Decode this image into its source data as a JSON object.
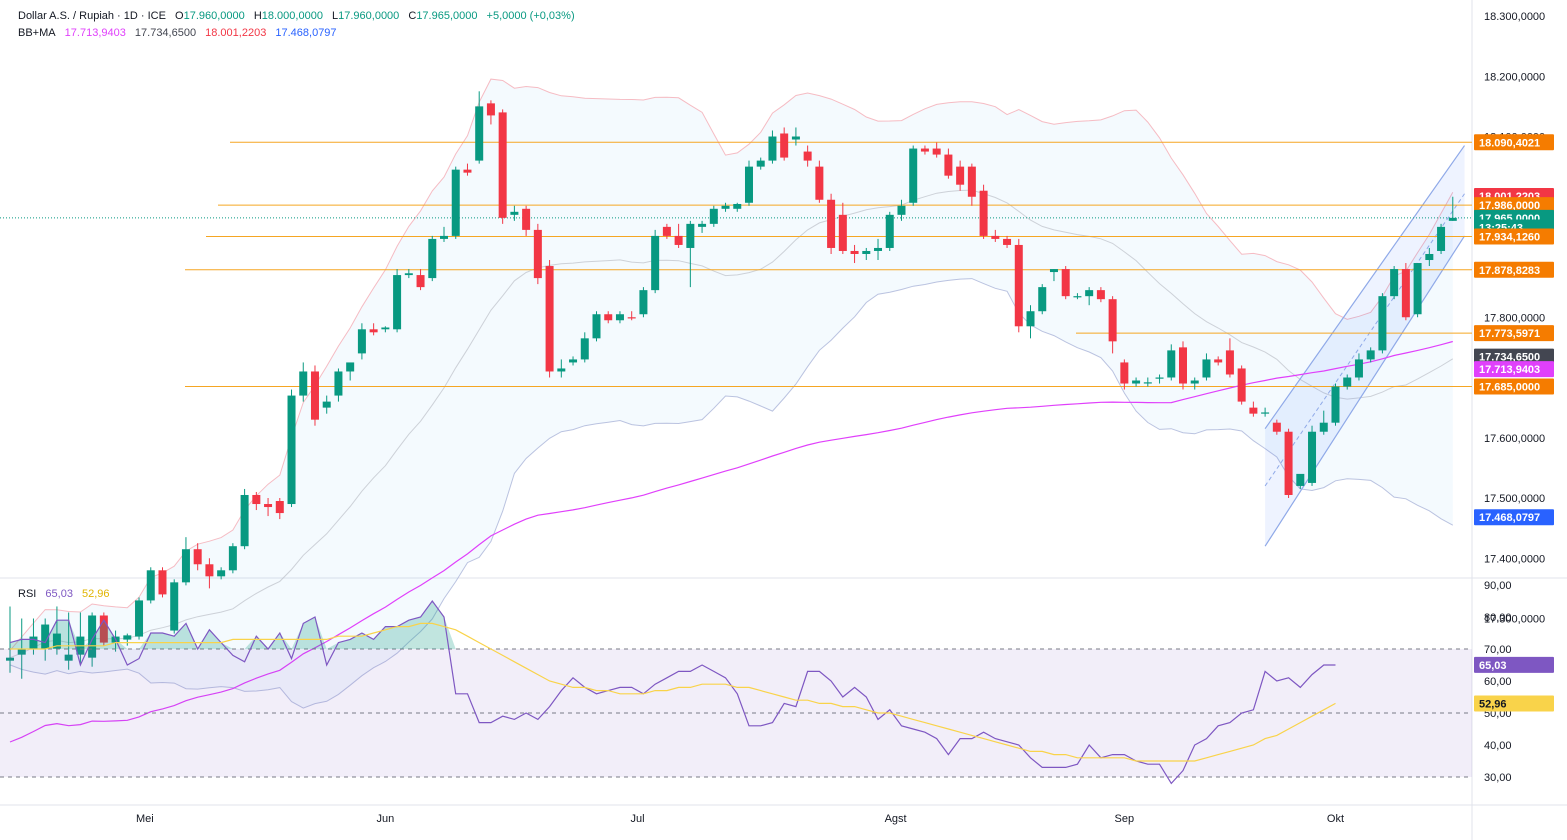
{
  "header": {
    "title": "Dollar A.S. / Rupiah · 1D · ICE",
    "o_label": "O",
    "o": "17.960,0000",
    "h_label": "H",
    "h": "18.000,0000",
    "l_label": "L",
    "l": "17.960,0000",
    "c_label": "C",
    "c": "17.965,0000",
    "change": "+5,0000 (+0,03%)",
    "bb_label": "BB+MA",
    "bb_basis": "17.713,9403",
    "bb_middle": "17.734,6500",
    "bb_upper": "18.001,2203",
    "bb_lower": "17.468,0797",
    "rsi_label": "RSI",
    "rsi_value": "65,03",
    "rsi_ma": "52,96"
  },
  "colors": {
    "up": "#089981",
    "down": "#f23645",
    "ma": "#e040fb",
    "bb_line": "#f4a0aa",
    "bb_lower": "#aab4d8",
    "level": "#f5a623",
    "channel": "#8fa9e8",
    "rsi": "#7e57c2",
    "rsi_ma": "#f9d34a"
  },
  "price_axis": {
    "ticks": [
      "18.300,0000",
      "18.200,0000",
      "18.100,0000",
      "17.800,0000",
      "17.600,0000",
      "17.500,0000",
      "17.400,0000",
      "17.300,0000"
    ],
    "tick_values": [
      18300,
      18200,
      18100,
      17800,
      17600,
      17500,
      17400,
      17300
    ],
    "badges": [
      {
        "text": "18.090,4021",
        "value": 18090.4021,
        "color": "#f57c00"
      },
      {
        "text": "18.001,2203",
        "value": 18001.2203,
        "color": "#f23645"
      },
      {
        "text": "17.986,0000",
        "value": 17986,
        "color": "#f57c00"
      },
      {
        "text": "17.965,0000",
        "value": 17965,
        "color": "#089981"
      },
      {
        "text": "13:25:43",
        "value": 17949,
        "color": "#089981"
      },
      {
        "text": "17.934,1260",
        "value": 17934.126,
        "color": "#f57c00"
      },
      {
        "text": "17.878,8283",
        "value": 17878.8283,
        "color": "#f57c00"
      },
      {
        "text": "17.773,5971",
        "value": 17773.5971,
        "color": "#f57c00"
      },
      {
        "text": "17.734,6500",
        "value": 17734.65,
        "color": "#434651"
      },
      {
        "text": "17.713,9403",
        "value": 17713.9403,
        "color": "#e040fb"
      },
      {
        "text": "17.685,0000",
        "value": 17685,
        "color": "#f57c00"
      },
      {
        "text": "17.468,0797",
        "value": 17468.0797,
        "color": "#2962ff"
      }
    ]
  },
  "rsi_axis": {
    "ticks": [
      "90,00",
      "80,00",
      "70,00",
      "60,00",
      "50,00",
      "40,00",
      "30,00"
    ],
    "tick_values": [
      90,
      80,
      70,
      60,
      50,
      40,
      30
    ],
    "badges": [
      {
        "text": "65,03",
        "value": 65.03,
        "color": "#7e57c2"
      },
      {
        "text": "52,96",
        "value": 52.96,
        "color": "#f9d34a",
        "dark": true
      }
    ]
  },
  "time_axis": {
    "labels": [
      "Mei",
      "Jun",
      "Jul",
      "Agst",
      "Sep",
      "Okt"
    ],
    "label_index": [
      11.5,
      32,
      53.5,
      75.5,
      95,
      113
    ]
  },
  "chart_data": {
    "type": "candlestick",
    "title": "Dollar A.S. / Rupiah · 1D · ICE",
    "ylim": [
      17280,
      18320
    ],
    "horizontal_levels": [
      18090.4021,
      17986,
      17934.126,
      17878.8283,
      17773.5971,
      17685
    ],
    "candles": [
      {
        "o": 17230,
        "h": 17320,
        "l": 17210,
        "c": 17235
      },
      {
        "o": 17240,
        "h": 17300,
        "l": 17200,
        "c": 17250
      },
      {
        "o": 17250,
        "h": 17300,
        "l": 17240,
        "c": 17270
      },
      {
        "o": 17250,
        "h": 17300,
        "l": 17230,
        "c": 17290
      },
      {
        "o": 17250,
        "h": 17320,
        "l": 17240,
        "c": 17275
      },
      {
        "o": 17230,
        "h": 17310,
        "l": 17215,
        "c": 17240
      },
      {
        "o": 17240,
        "h": 17310,
        "l": 17225,
        "c": 17270
      },
      {
        "o": 17235,
        "h": 17310,
        "l": 17220,
        "c": 17305
      },
      {
        "o": 17305,
        "h": 17310,
        "l": 17255,
        "c": 17260
      },
      {
        "o": 17260,
        "h": 17280,
        "l": 17245,
        "c": 17270
      },
      {
        "o": 17265,
        "h": 17275,
        "l": 17255,
        "c": 17272
      },
      {
        "o": 17270,
        "h": 17335,
        "l": 17265,
        "c": 17330
      },
      {
        "o": 17330,
        "h": 17385,
        "l": 17325,
        "c": 17380
      },
      {
        "o": 17380,
        "h": 17385,
        "l": 17335,
        "c": 17340
      },
      {
        "o": 17280,
        "h": 17365,
        "l": 17275,
        "c": 17360
      },
      {
        "o": 17360,
        "h": 17435,
        "l": 17355,
        "c": 17415
      },
      {
        "o": 17415,
        "h": 17425,
        "l": 17380,
        "c": 17390
      },
      {
        "o": 17390,
        "h": 17400,
        "l": 17350,
        "c": 17370
      },
      {
        "o": 17370,
        "h": 17385,
        "l": 17365,
        "c": 17380
      },
      {
        "o": 17380,
        "h": 17425,
        "l": 17375,
        "c": 17420
      },
      {
        "o": 17420,
        "h": 17515,
        "l": 17415,
        "c": 17505
      },
      {
        "o": 17505,
        "h": 17510,
        "l": 17480,
        "c": 17490
      },
      {
        "o": 17490,
        "h": 17500,
        "l": 17470,
        "c": 17485
      },
      {
        "o": 17495,
        "h": 17500,
        "l": 17465,
        "c": 17475
      },
      {
        "o": 17490,
        "h": 17680,
        "l": 17485,
        "c": 17670
      },
      {
        "o": 17670,
        "h": 17725,
        "l": 17660,
        "c": 17710
      },
      {
        "o": 17710,
        "h": 17720,
        "l": 17620,
        "c": 17630
      },
      {
        "o": 17650,
        "h": 17670,
        "l": 17640,
        "c": 17660
      },
      {
        "o": 17670,
        "h": 17715,
        "l": 17660,
        "c": 17710
      },
      {
        "o": 17710,
        "h": 17720,
        "l": 17695,
        "c": 17725
      },
      {
        "o": 17740,
        "h": 17790,
        "l": 17730,
        "c": 17780
      },
      {
        "o": 17780,
        "h": 17790,
        "l": 17770,
        "c": 17775
      },
      {
        "o": 17780,
        "h": 17785,
        "l": 17775,
        "c": 17783
      },
      {
        "o": 17780,
        "h": 17880,
        "l": 17775,
        "c": 17870
      },
      {
        "o": 17870,
        "h": 17880,
        "l": 17865,
        "c": 17873
      },
      {
        "o": 17870,
        "h": 17880,
        "l": 17845,
        "c": 17850
      },
      {
        "o": 17865,
        "h": 17935,
        "l": 17860,
        "c": 17930
      },
      {
        "o": 17930,
        "h": 17950,
        "l": 17925,
        "c": 17935
      },
      {
        "o": 17935,
        "h": 18050,
        "l": 17930,
        "c": 18045
      },
      {
        "o": 18045,
        "h": 18055,
        "l": 18035,
        "c": 18040
      },
      {
        "o": 18060,
        "h": 18175,
        "l": 18055,
        "c": 18150
      },
      {
        "o": 18155,
        "h": 18160,
        "l": 18120,
        "c": 18135
      },
      {
        "o": 18140,
        "h": 18145,
        "l": 17955,
        "c": 17965
      },
      {
        "o": 17970,
        "h": 17985,
        "l": 17960,
        "c": 17975
      },
      {
        "o": 17980,
        "h": 17985,
        "l": 17935,
        "c": 17945
      },
      {
        "o": 17945,
        "h": 17955,
        "l": 17855,
        "c": 17865
      },
      {
        "o": 17885,
        "h": 17895,
        "l": 17700,
        "c": 17710
      },
      {
        "o": 17710,
        "h": 17730,
        "l": 17700,
        "c": 17715
      },
      {
        "o": 17725,
        "h": 17735,
        "l": 17720,
        "c": 17730
      },
      {
        "o": 17730,
        "h": 17775,
        "l": 17725,
        "c": 17765
      },
      {
        "o": 17765,
        "h": 17810,
        "l": 17760,
        "c": 17805
      },
      {
        "o": 17805,
        "h": 17810,
        "l": 17790,
        "c": 17795
      },
      {
        "o": 17795,
        "h": 17810,
        "l": 17790,
        "c": 17805
      },
      {
        "o": 17800,
        "h": 17810,
        "l": 17795,
        "c": 17798
      },
      {
        "o": 17805,
        "h": 17850,
        "l": 17800,
        "c": 17845
      },
      {
        "o": 17845,
        "h": 17945,
        "l": 17840,
        "c": 17935
      },
      {
        "o": 17950,
        "h": 17955,
        "l": 17930,
        "c": 17935
      },
      {
        "o": 17935,
        "h": 17955,
        "l": 17915,
        "c": 17920
      },
      {
        "o": 17915,
        "h": 17960,
        "l": 17850,
        "c": 17955
      },
      {
        "o": 17950,
        "h": 17960,
        "l": 17940,
        "c": 17955
      },
      {
        "o": 17955,
        "h": 17985,
        "l": 17950,
        "c": 17980
      },
      {
        "o": 17980,
        "h": 17990,
        "l": 17975,
        "c": 17985
      },
      {
        "o": 17980,
        "h": 17990,
        "l": 17975,
        "c": 17988
      },
      {
        "o": 17990,
        "h": 18060,
        "l": 17985,
        "c": 18050
      },
      {
        "o": 18050,
        "h": 18065,
        "l": 18045,
        "c": 18060
      },
      {
        "o": 18060,
        "h": 18110,
        "l": 18055,
        "c": 18100
      },
      {
        "o": 18105,
        "h": 18115,
        "l": 18060,
        "c": 18065
      },
      {
        "o": 18095,
        "h": 18115,
        "l": 18085,
        "c": 18100
      },
      {
        "o": 18075,
        "h": 18085,
        "l": 18050,
        "c": 18060
      },
      {
        "o": 18050,
        "h": 18060,
        "l": 17990,
        "c": 17995
      },
      {
        "o": 17995,
        "h": 18005,
        "l": 17905,
        "c": 17915
      },
      {
        "o": 17970,
        "h": 17990,
        "l": 17905,
        "c": 17910
      },
      {
        "o": 17910,
        "h": 17920,
        "l": 17890,
        "c": 17905
      },
      {
        "o": 17905,
        "h": 17915,
        "l": 17895,
        "c": 17910
      },
      {
        "o": 17910,
        "h": 17930,
        "l": 17895,
        "c": 17915
      },
      {
        "o": 17915,
        "h": 17975,
        "l": 17910,
        "c": 17970
      },
      {
        "o": 17970,
        "h": 17995,
        "l": 17960,
        "c": 17985
      },
      {
        "o": 17990,
        "h": 18085,
        "l": 17985,
        "c": 18080
      },
      {
        "o": 18080,
        "h": 18085,
        "l": 18070,
        "c": 18075
      },
      {
        "o": 18080,
        "h": 18090,
        "l": 18065,
        "c": 18070
      },
      {
        "o": 18070,
        "h": 18080,
        "l": 18030,
        "c": 18035
      },
      {
        "o": 18050,
        "h": 18060,
        "l": 18010,
        "c": 18020
      },
      {
        "o": 18050,
        "h": 18055,
        "l": 17985,
        "c": 18000
      },
      {
        "o": 18010,
        "h": 18020,
        "l": 17930,
        "c": 17935
      },
      {
        "o": 17935,
        "h": 17945,
        "l": 17925,
        "c": 17930
      },
      {
        "o": 17930,
        "h": 17935,
        "l": 17915,
        "c": 17920
      },
      {
        "o": 17920,
        "h": 17930,
        "l": 17775,
        "c": 17785
      },
      {
        "o": 17785,
        "h": 17820,
        "l": 17765,
        "c": 17810
      },
      {
        "o": 17810,
        "h": 17855,
        "l": 17805,
        "c": 17850
      },
      {
        "o": 17875,
        "h": 17880,
        "l": 17860,
        "c": 17880
      },
      {
        "o": 17880,
        "h": 17885,
        "l": 17830,
        "c": 17835
      },
      {
        "o": 17835,
        "h": 17840,
        "l": 17830,
        "c": 17835
      },
      {
        "o": 17835,
        "h": 17850,
        "l": 17820,
        "c": 17845
      },
      {
        "o": 17845,
        "h": 17850,
        "l": 17825,
        "c": 17830
      },
      {
        "o": 17830,
        "h": 17835,
        "l": 17740,
        "c": 17760
      },
      {
        "o": 17725,
        "h": 17730,
        "l": 17680,
        "c": 17690
      },
      {
        "o": 17690,
        "h": 17700,
        "l": 17685,
        "c": 17695
      },
      {
        "o": 17690,
        "h": 17700,
        "l": 17685,
        "c": 17692
      },
      {
        "o": 17700,
        "h": 17705,
        "l": 17690,
        "c": 17700
      },
      {
        "o": 17700,
        "h": 17755,
        "l": 17695,
        "c": 17745
      },
      {
        "o": 17750,
        "h": 17760,
        "l": 17680,
        "c": 17690
      },
      {
        "o": 17690,
        "h": 17700,
        "l": 17680,
        "c": 17695
      },
      {
        "o": 17700,
        "h": 17740,
        "l": 17695,
        "c": 17730
      },
      {
        "o": 17730,
        "h": 17735,
        "l": 17720,
        "c": 17725
      },
      {
        "o": 17745,
        "h": 17765,
        "l": 17700,
        "c": 17705
      },
      {
        "o": 17715,
        "h": 17720,
        "l": 17655,
        "c": 17660
      },
      {
        "o": 17650,
        "h": 17660,
        "l": 17635,
        "c": 17640
      },
      {
        "o": 17640,
        "h": 17650,
        "l": 17635,
        "c": 17642
      },
      {
        "o": 17625,
        "h": 17630,
        "l": 17605,
        "c": 17610
      },
      {
        "o": 17610,
        "h": 17615,
        "l": 17500,
        "c": 17505
      },
      {
        "o": 17520,
        "h": 17530,
        "l": 17515,
        "c": 17540
      },
      {
        "o": 17525,
        "h": 17620,
        "l": 17520,
        "c": 17610
      },
      {
        "o": 17610,
        "h": 17645,
        "l": 17605,
        "c": 17625
      },
      {
        "o": 17625,
        "h": 17690,
        "l": 17620,
        "c": 17685
      },
      {
        "o": 17685,
        "h": 17705,
        "l": 17680,
        "c": 17700
      },
      {
        "o": 17700,
        "h": 17740,
        "l": 17695,
        "c": 17730
      },
      {
        "o": 17730,
        "h": 17750,
        "l": 17725,
        "c": 17745
      },
      {
        "o": 17745,
        "h": 17840,
        "l": 17740,
        "c": 17835
      },
      {
        "o": 17835,
        "h": 17885,
        "l": 17830,
        "c": 17880
      },
      {
        "o": 17880,
        "h": 17890,
        "l": 17795,
        "c": 17800
      },
      {
        "o": 17805,
        "h": 17890,
        "l": 17800,
        "c": 17890
      },
      {
        "o": 17895,
        "h": 17915,
        "l": 17885,
        "c": 17905
      },
      {
        "o": 17910,
        "h": 17955,
        "l": 17905,
        "c": 17950
      },
      {
        "o": 17960,
        "h": 18000,
        "l": 17960,
        "c": 17965
      }
    ],
    "rsi": [
      72,
      73,
      73,
      72,
      79,
      79,
      65,
      73,
      79,
      73,
      65,
      67,
      75,
      75,
      74,
      78,
      70,
      76,
      72,
      68,
      66,
      74,
      70,
      75,
      67,
      78,
      80,
      65,
      72,
      73,
      75,
      73,
      77,
      77,
      79,
      80,
      85,
      80,
      56,
      56,
      47,
      47,
      49,
      48,
      50,
      48,
      52,
      57,
      61,
      58,
      56,
      57,
      58,
      58,
      56,
      59,
      61,
      63,
      63,
      65,
      63,
      61,
      56,
      46,
      46,
      47,
      53,
      52,
      63,
      63,
      60,
      55,
      58,
      55,
      48,
      51,
      46,
      45,
      44,
      42,
      37,
      42,
      42,
      44,
      42,
      41,
      40,
      36,
      33,
      33,
      33,
      34,
      40,
      36,
      37,
      37,
      35,
      34,
      34,
      28,
      32,
      40,
      42,
      46,
      47,
      50,
      51,
      63,
      60,
      61,
      58,
      62,
      65,
      65
    ],
    "rsi_ma": [
      70,
      70,
      70,
      70,
      71,
      71,
      71,
      71,
      71,
      72,
      72,
      72,
      72,
      72,
      72,
      72,
      72,
      72,
      72,
      73,
      73,
      73,
      73,
      73,
      73,
      73,
      73,
      73,
      74,
      74,
      74,
      75,
      76,
      77,
      77,
      78,
      78,
      77,
      76,
      74,
      72,
      70,
      68,
      66,
      64,
      62,
      60,
      59,
      58,
      58,
      57,
      57,
      56,
      56,
      56,
      57,
      57,
      58,
      58,
      59,
      59,
      59,
      58,
      58,
      57,
      56,
      55,
      54,
      54,
      53,
      53,
      52,
      52,
      51,
      50,
      50,
      49,
      48,
      47,
      46,
      45,
      44,
      43,
      42,
      41,
      40,
      39,
      38,
      38,
      37,
      37,
      36,
      36,
      36,
      36,
      36,
      35,
      35,
      35,
      35,
      35,
      35,
      36,
      37,
      38,
      39,
      40,
      42,
      43,
      45,
      47,
      49,
      51,
      53
    ]
  }
}
